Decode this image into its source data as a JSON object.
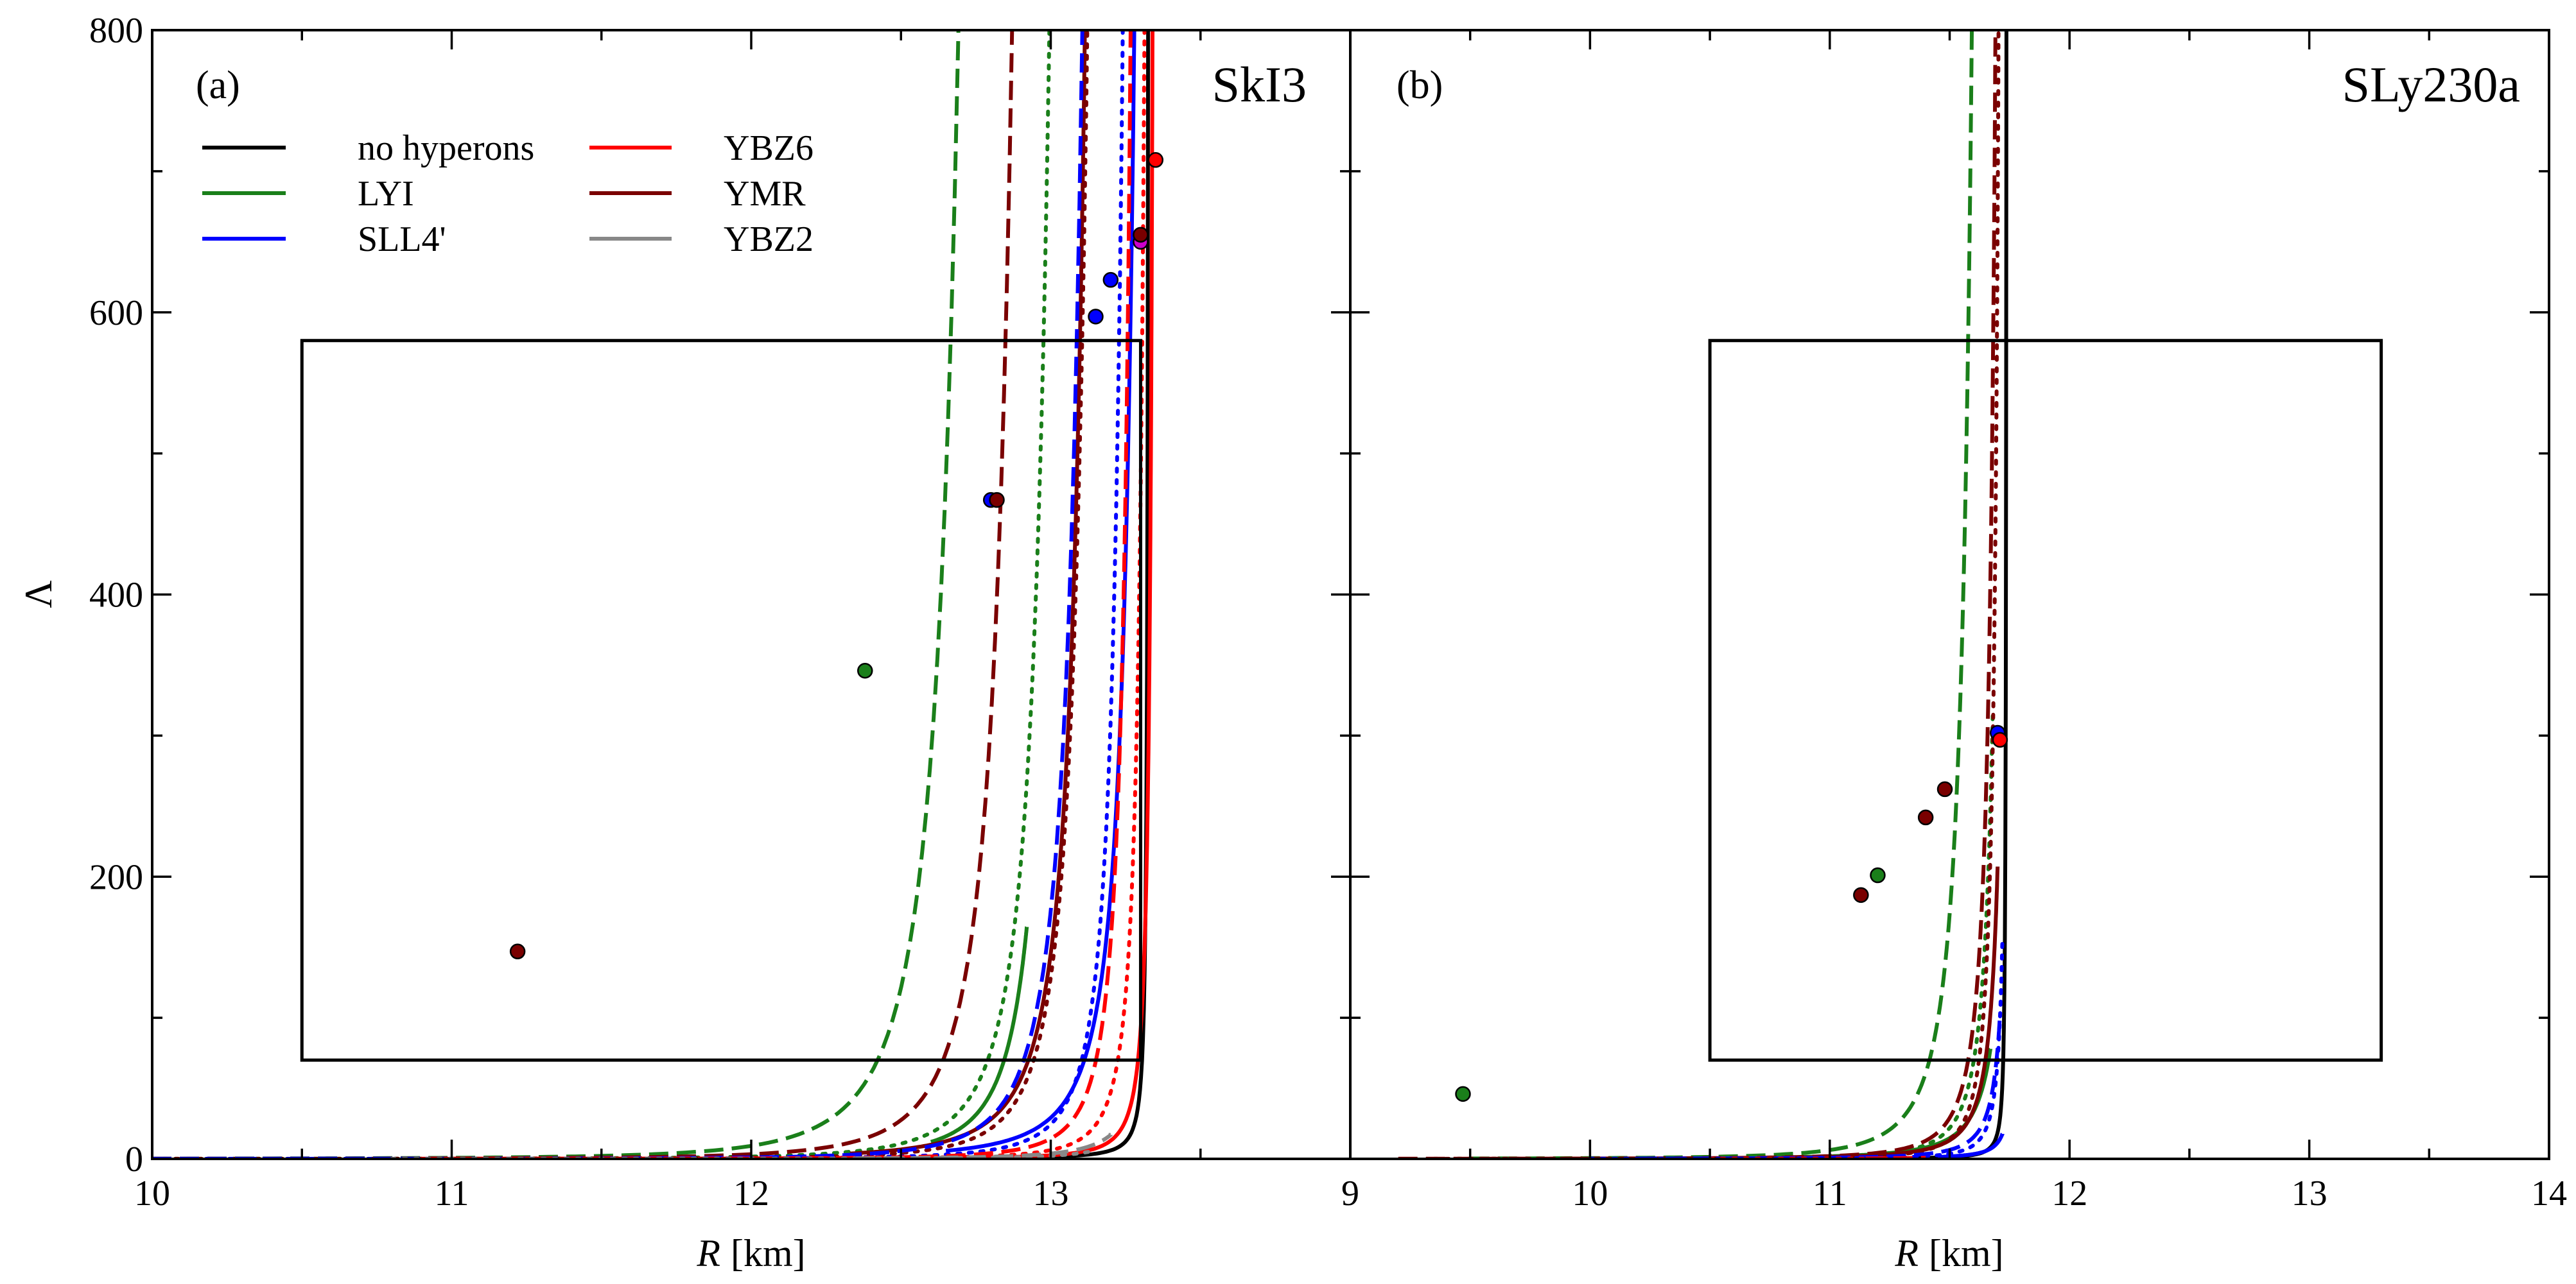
{
  "chart_data": [
    {
      "type": "line",
      "panel_label": "(a)",
      "model": "SkI3",
      "xlabel_italic": "R",
      "xlabel_unit": "[km]",
      "ylabel": "Λ",
      "xlim": [
        10,
        14
      ],
      "ylim": [
        0,
        800
      ],
      "xticks": [
        "10",
        "11",
        "12",
        "13"
      ],
      "yticks": [
        "0",
        "200",
        "400",
        "600",
        "800"
      ],
      "constraint_box": {
        "r_min": 10.5,
        "r_max": 13.3,
        "lambda_min": 70,
        "lambda_max": 580
      },
      "legend": {
        "placement": "top-left",
        "entries": [
          {
            "label": "no hyperons",
            "color": "#000000"
          },
          {
            "label": "LYI",
            "color": "#1a7f1a"
          },
          {
            "label": "SLL4'",
            "color": "#0000ff"
          },
          {
            "label": "YBZ6",
            "color": "#ff0000"
          },
          {
            "label": "YMR",
            "color": "#7a0000"
          },
          {
            "label": "YBZ2",
            "color": "#888888"
          }
        ]
      },
      "series": [
        {
          "model": "no hyperons",
          "style": "solid",
          "color": "#000000",
          "R0": 13.33,
          "A": 0.28,
          "d": 1.5,
          "r_from": 11.05,
          "r_to": 13.34
        },
        {
          "model": "LYI",
          "style": "dashed",
          "color": "#1a7f1a",
          "R0": 12.96,
          "A": 8.0,
          "d": 3.5,
          "r_from": 10.0,
          "r_to": 12.95
        },
        {
          "model": "LYI",
          "style": "solid",
          "color": "#1a7f1a",
          "R0": 13.15,
          "A": 2.0,
          "d": 3.0,
          "r_from": 12.6,
          "r_to": 12.92
        },
        {
          "model": "LYI",
          "style": "dotted",
          "color": "#1a7f1a",
          "R0": 13.2,
          "A": 3.1,
          "d": 3.5,
          "r_from": 10.0,
          "r_to": 13.0
        },
        {
          "model": "YMR",
          "style": "dashed",
          "color": "#7a0000",
          "R0": 13.1,
          "A": 4.6,
          "d": 3.5,
          "r_from": 10.0,
          "r_to": 13.05
        },
        {
          "model": "YMR",
          "style": "solid",
          "color": "#7a0000",
          "R0": 13.25,
          "A": 3.0,
          "d": 2.8,
          "r_from": 12.33,
          "r_to": 13.15
        },
        {
          "model": "YMR",
          "style": "dotted",
          "color": "#7a0000",
          "R0": 13.3,
          "A": 1.9,
          "d": 3.5,
          "r_from": 10.0,
          "r_to": 13.24
        },
        {
          "model": "SLL4'",
          "style": "dashed",
          "color": "#0000ff",
          "R0": 13.3,
          "A": 2.6,
          "d": 3.5,
          "r_from": 10.0,
          "r_to": 13.25
        },
        {
          "model": "SLL4'",
          "style": "solid",
          "color": "#0000ff",
          "R0": 13.38,
          "A": 2.6,
          "d": 2.5,
          "r_from": 12.65,
          "r_to": 13.3
        },
        {
          "model": "SLL4'",
          "style": "dotted",
          "color": "#0000ff",
          "R0": 13.35,
          "A": 1.05,
          "d": 3.0,
          "r_from": 10.18,
          "r_to": 13.31
        },
        {
          "model": "YBZ6",
          "style": "dashed",
          "color": "#ff0000",
          "R0": 13.35,
          "A": 0.76,
          "d": 2.8,
          "r_from": 10.9,
          "r_to": 13.32
        },
        {
          "model": "YBZ6",
          "style": "solid",
          "color": "#ff0000",
          "R0": 13.36,
          "A": 0.33,
          "d": 2.0,
          "r_from": 12.7,
          "r_to": 13.34
        },
        {
          "model": "YBZ6",
          "style": "dotted",
          "color": "#ff0000",
          "R0": 13.37,
          "A": 0.47,
          "d": 2.6,
          "r_from": 10.9,
          "r_to": 13.35
        },
        {
          "model": "YBZ2",
          "style": "dashed",
          "color": "#888888",
          "R0": 13.43,
          "A": 0.5,
          "d": 2.4,
          "r_from": 12.35,
          "r_to": 13.2
        },
        {
          "model": "YBZ2",
          "style": "dotted",
          "color": "#888888",
          "R0": 13.4,
          "A": 0.29,
          "d": 2.2,
          "r_from": 10.8,
          "r_to": 13.15
        }
      ],
      "points": [
        {
          "R": 11.22,
          "L": 147,
          "color": "#7a0000"
        },
        {
          "R": 12.38,
          "L": 346,
          "color": "#1a7f1a"
        },
        {
          "R": 12.8,
          "L": 467,
          "color": "#0000ff"
        },
        {
          "R": 12.82,
          "L": 467,
          "color": "#7a0000"
        },
        {
          "R": 13.15,
          "L": 597,
          "color": "#0000ff"
        },
        {
          "R": 13.2,
          "L": 623,
          "color": "#0000ff"
        },
        {
          "R": 13.3,
          "L": 650,
          "color": "#cc00cc"
        },
        {
          "R": 13.3,
          "L": 655,
          "color": "#7a0000"
        },
        {
          "R": 13.35,
          "L": 708,
          "color": "#ff0000"
        }
      ]
    },
    {
      "type": "line",
      "panel_label": "(b)",
      "model": "SLy230a",
      "xlabel_italic": "R",
      "xlabel_unit": "[km]",
      "ylabel": "Λ",
      "xlim": [
        9,
        14
      ],
      "ylim": [
        0,
        800
      ],
      "xticks": [
        "9",
        "10",
        "11",
        "12",
        "13",
        "14"
      ],
      "yticks": [
        "0",
        "200",
        "400",
        "600",
        "800"
      ],
      "constraint_box": {
        "r_min": 10.5,
        "r_max": 13.3,
        "lambda_min": 70,
        "lambda_max": 580
      },
      "series": [
        {
          "model": "no hyperons",
          "style": "solid",
          "color": "#000000",
          "R0": 11.74,
          "A": 0.15,
          "d": 1.5,
          "r_from": 10.2,
          "r_to": 11.75
        },
        {
          "model": "LYI",
          "style": "dashed",
          "color": "#1a7f1a",
          "R0": 11.72,
          "A": 2.5,
          "d": 2.8,
          "r_from": 9.5,
          "r_to": 11.64
        },
        {
          "model": "LYI",
          "style": "solid",
          "color": "#1a7f1a",
          "R0": 11.82,
          "A": 1.2,
          "d": 2.2,
          "r_from": 10.88,
          "r_to": 11.67
        },
        {
          "model": "LYI",
          "style": "dotted",
          "color": "#1a7f1a",
          "R0": 11.78,
          "A": 0.8,
          "d": 2.6,
          "r_from": 9.45,
          "r_to": 11.68
        },
        {
          "model": "YMR",
          "style": "dashed",
          "color": "#7a0000",
          "R0": 11.76,
          "A": 1.0,
          "d": 2.5,
          "r_from": 9.2,
          "r_to": 11.7
        },
        {
          "model": "YMR",
          "style": "solid",
          "color": "#7a0000",
          "R0": 11.78,
          "A": 0.8,
          "d": 2.2,
          "r_from": 10.8,
          "r_to": 11.7
        },
        {
          "model": "YMR",
          "style": "dotted",
          "color": "#7a0000",
          "R0": 11.75,
          "A": 0.5,
          "d": 2.4,
          "r_from": 9.35,
          "r_to": 11.71
        },
        {
          "model": "SLL4'",
          "style": "dashed",
          "color": "#0000ff",
          "R0": 11.78,
          "A": 0.5,
          "d": 2.0,
          "r_from": 10.2,
          "r_to": 11.71
        },
        {
          "model": "SLL4'",
          "style": "solid",
          "color": "#0000ff",
          "R0": 11.78,
          "A": 0.26,
          "d": 1.5,
          "r_from": 11.45,
          "r_to": 11.72
        },
        {
          "model": "SLL4'",
          "style": "dotted",
          "color": "#0000ff",
          "R0": 11.76,
          "A": 0.25,
          "d": 2.0,
          "r_from": 10.0,
          "r_to": 11.72
        },
        {
          "model": "YBZ6",
          "style": "dashed",
          "color": "#ff0000",
          "R0": 11.8,
          "A": 0.17,
          "d": 1.6,
          "r_from": 11.15,
          "r_to": 11.4
        },
        {
          "model": "YBZ6",
          "style": "dotted",
          "color": "#ff0000",
          "R0": 11.78,
          "A": 0.1,
          "d": 1.6,
          "r_from": 10.5,
          "r_to": 11.3
        }
      ],
      "points": [
        {
          "R": 9.47,
          "L": 46,
          "color": "#1a7f1a"
        },
        {
          "R": 11.13,
          "L": 187,
          "color": "#7a0000"
        },
        {
          "R": 11.2,
          "L": 201,
          "color": "#1a7f1a"
        },
        {
          "R": 11.4,
          "L": 242,
          "color": "#7a0000"
        },
        {
          "R": 11.48,
          "L": 262,
          "color": "#7a0000"
        },
        {
          "R": 11.7,
          "L": 302,
          "color": "#0000ff"
        },
        {
          "R": 11.71,
          "L": 297,
          "color": "#ff0000"
        }
      ]
    }
  ]
}
